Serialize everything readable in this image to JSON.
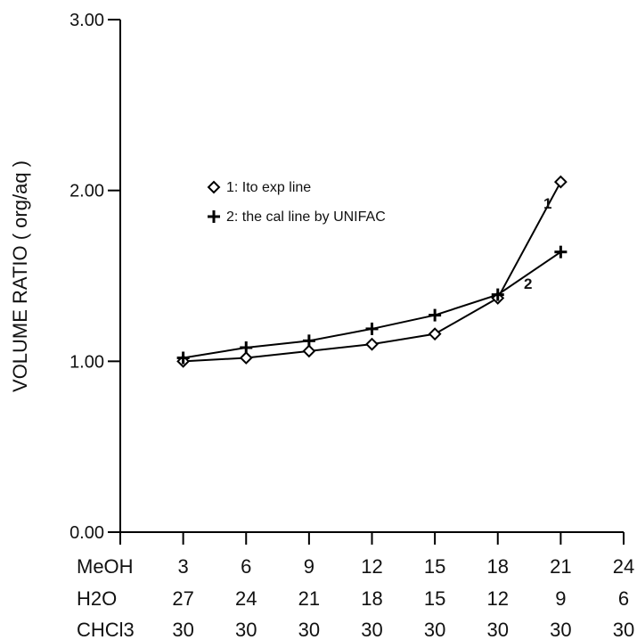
{
  "chart_data": {
    "type": "line",
    "ylabel": "VOLUME RATIO ( org/aq )",
    "ylim": [
      0,
      3
    ],
    "yticks": [
      0,
      1,
      2,
      3
    ],
    "ytick_labels": [
      "0.00",
      "1.00",
      "2.00",
      "3.00"
    ],
    "x_ticks": [
      0,
      3,
      6,
      9,
      12,
      15,
      18,
      21,
      24
    ],
    "x_rows": [
      {
        "label": "MeOH",
        "values": [
          "3",
          "6",
          "9",
          "12",
          "15",
          "18",
          "21",
          "24"
        ]
      },
      {
        "label": "H2O",
        "values": [
          "27",
          "24",
          "21",
          "18",
          "15",
          "12",
          "9",
          "6"
        ]
      },
      {
        "label": "CHCl3",
        "values": [
          "30",
          "30",
          "30",
          "30",
          "30",
          "30",
          "30",
          "30"
        ]
      }
    ],
    "xlim": [
      0,
      24
    ],
    "series": [
      {
        "name": "1: Ito exp line",
        "tag": "1",
        "marker": "diamond",
        "x": [
          3,
          6,
          9,
          12,
          15,
          18,
          21
        ],
        "y": [
          1.0,
          1.02,
          1.06,
          1.1,
          1.16,
          1.37,
          2.05
        ]
      },
      {
        "name": "2: the cal line by UNIFAC",
        "tag": "2",
        "marker": "plus",
        "x": [
          3,
          6,
          9,
          12,
          15,
          18,
          21
        ],
        "y": [
          1.02,
          1.08,
          1.12,
          1.19,
          1.27,
          1.39,
          1.64
        ]
      }
    ],
    "legend_position": "upper-middle",
    "grid": false
  }
}
